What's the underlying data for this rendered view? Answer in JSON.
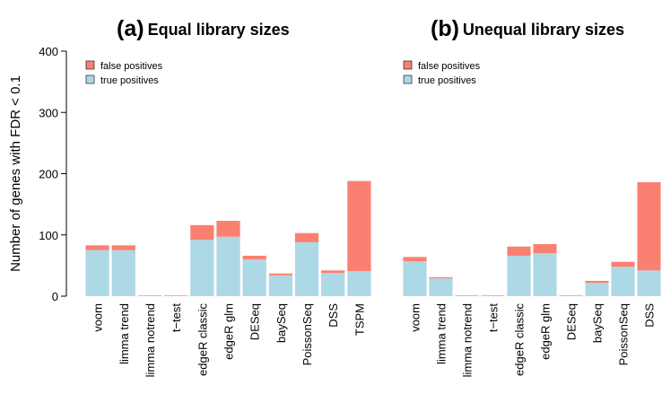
{
  "charts": [
    {
      "chart_data": {
        "type": "bar",
        "stacked": true,
        "title_label": "(a)",
        "title": "Equal library sizes",
        "y_label": "Number of genes with FDR < 0.1",
        "categories": [
          "voom",
          "limma trend",
          "limma notrend",
          "t−test",
          "edgeR classic",
          "edgeR glm",
          "DESeq",
          "baySeq",
          "PoissonSeq",
          "DSS",
          "TSPM"
        ],
        "series": [
          {
            "name": "true positives",
            "color": "#add8e6",
            "values": [
              75,
              75,
              0,
              0,
              92,
              97,
              60,
              34,
              88,
              38,
              41
            ]
          },
          {
            "name": "false positives",
            "color": "#fa8072",
            "values": [
              8,
              8,
              1,
              1,
              24,
              26,
              6,
              3,
              15,
              4,
              147
            ]
          }
        ],
        "ylim": [
          0,
          400
        ],
        "yticks": [
          0,
          100,
          200,
          300,
          400
        ],
        "legend": "top-left"
      }
    },
    {
      "chart_data": {
        "type": "bar",
        "stacked": true,
        "title_label": "(b)",
        "title": "Unequal library sizes",
        "categories": [
          "voom",
          "limma trend",
          "limma notrend",
          "t−test",
          "edgeR classic",
          "edgeR glm",
          "DESeq",
          "baySeq",
          "PoissonSeq",
          "DSS"
        ],
        "series": [
          {
            "name": "true positives",
            "color": "#add8e6",
            "values": [
              57,
              29,
              0,
              0,
              66,
              70,
              0,
              22,
              48,
              42
            ]
          },
          {
            "name": "false positives",
            "color": "#fa8072",
            "values": [
              7,
              2,
              1,
              1,
              15,
              15,
              1,
              3,
              8,
              144
            ]
          }
        ],
        "ylim": [
          0,
          400
        ],
        "legend": "top-left"
      }
    }
  ]
}
